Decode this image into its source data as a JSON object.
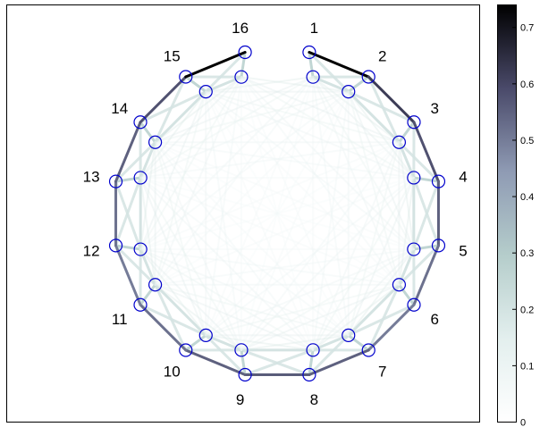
{
  "chart_data": {
    "type": "network-graph",
    "layout": "two concentric rings of 16 nodes each",
    "node_labels": [
      "1",
      "2",
      "3",
      "4",
      "5",
      "6",
      "7",
      "8",
      "9",
      "10",
      "11",
      "12",
      "13",
      "14",
      "15",
      "16"
    ],
    "outer_ring_edge_weights": [
      0.74,
      0.62,
      0.58,
      0.55,
      0.52,
      0.5,
      0.55,
      0.56,
      0.55,
      0.52,
      0.5,
      0.52,
      0.55,
      0.58,
      0.74,
      0.0
    ],
    "colorbar": {
      "colormap": "bone_r",
      "range": [
        0,
        0.74
      ],
      "ticks": [
        "0",
        "0.1",
        "0.2",
        "0.3",
        "0.4",
        "0.5",
        "0.6",
        "0.7"
      ]
    },
    "node_marker_color": "#0000cc",
    "frame": true
  }
}
